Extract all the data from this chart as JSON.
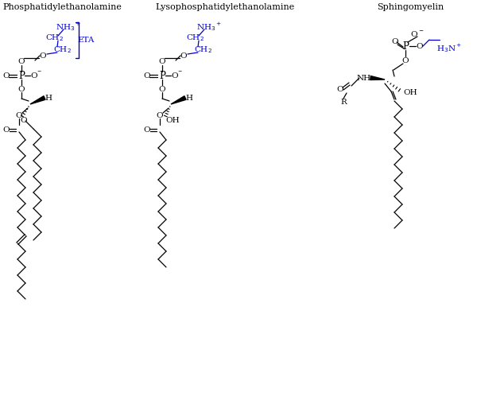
{
  "title1": "Phosphatidylethanolamine",
  "title2": "Lysophosphatidylethanolamine",
  "title3": "Sphingomyelin",
  "bg_color": "#ffffff",
  "black": "#000000",
  "blue": "#0000cc"
}
